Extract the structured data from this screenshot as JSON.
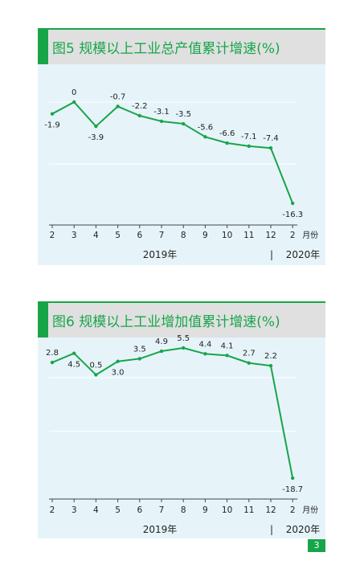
{
  "chart_data": [
    {
      "type": "line",
      "title": "图5 规模以上工业总产值累计增速(%)",
      "categories": [
        "2",
        "3",
        "4",
        "5",
        "6",
        "7",
        "8",
        "9",
        "10",
        "11",
        "12",
        "2"
      ],
      "values": [
        -1.9,
        0,
        -3.9,
        -0.7,
        -2.2,
        -3.1,
        -3.5,
        -5.6,
        -6.6,
        -7.1,
        -7.4,
        -16.3
      ],
      "labels": [
        "-1.9",
        "0",
        "-3.9",
        "-0.7",
        "-2.2",
        "-3.1",
        "-3.5",
        "-5.6",
        "-6.6",
        "-7.1",
        "-7.4",
        "-16.3"
      ],
      "xunit": "月份",
      "years": [
        "2019年",
        "2020年"
      ],
      "separator": "|",
      "ylim": [
        -19,
        3
      ],
      "color": "#18a54a"
    },
    {
      "type": "line",
      "title": "图6 规模以上工业增加值累计增速(%)",
      "categories": [
        "2",
        "3",
        "4",
        "5",
        "6",
        "7",
        "8",
        "9",
        "10",
        "11",
        "12",
        "2"
      ],
      "values": [
        2.8,
        4.5,
        0.5,
        3.0,
        3.5,
        4.9,
        5.5,
        4.4,
        4.1,
        2.7,
        2.2,
        -18.7
      ],
      "labels": [
        "2.8",
        "4.5",
        "0.5",
        "3.0",
        "3.5",
        "4.9",
        "5.5",
        "4.4",
        "4.1",
        "2.7",
        "2.2",
        "-18.7"
      ],
      "xunit": "月份",
      "years": [
        "2019年",
        "2020年"
      ],
      "separator": "|",
      "ylim": [
        -21,
        7
      ],
      "color": "#18a54a"
    }
  ],
  "page_number": "3"
}
